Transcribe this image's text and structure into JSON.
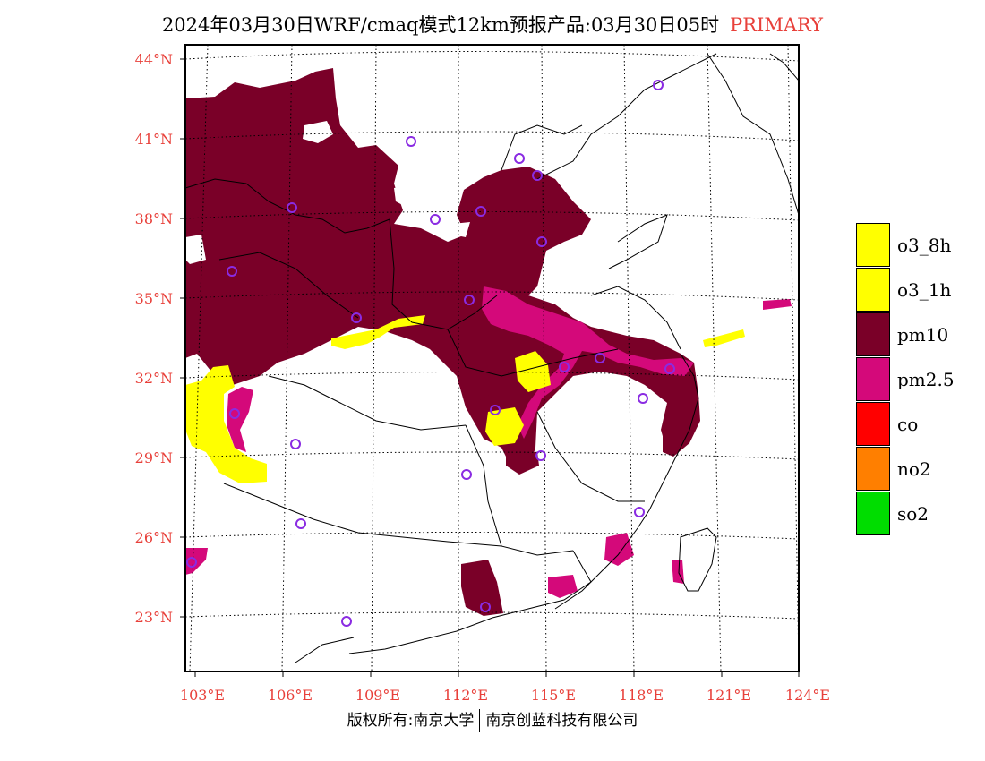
{
  "title": {
    "main": "2024年03月30日WRF/cmaq模式12km预报产品:03月30日05时",
    "tag": "PRIMARY"
  },
  "axes": {
    "lat_labels": [
      "44°N",
      "41°N",
      "38°N",
      "35°N",
      "32°N",
      "29°N",
      "26°N",
      "23°N"
    ],
    "lon_labels": [
      "103°E",
      "106°E",
      "109°E",
      "112°E",
      "115°E",
      "118°E",
      "121°E",
      "124°E"
    ]
  },
  "legend": [
    {
      "label": "o3_8h",
      "color": "#ffff00"
    },
    {
      "label": "o3_1h",
      "color": "#ffff00"
    },
    {
      "label": "pm10",
      "color": "#7a0028"
    },
    {
      "label": "pm2.5",
      "color": "#d4097a"
    },
    {
      "label": "co",
      "color": "#ff0000"
    },
    {
      "label": "no2",
      "color": "#ff7f00"
    },
    {
      "label": "so2",
      "color": "#00dd00"
    }
  ],
  "footer": {
    "left": "版权所有:南京大学",
    "right": "南京创蓝科技有限公司"
  },
  "colors": {
    "label_red": "#e8403a",
    "station": "#8a2be2"
  }
}
